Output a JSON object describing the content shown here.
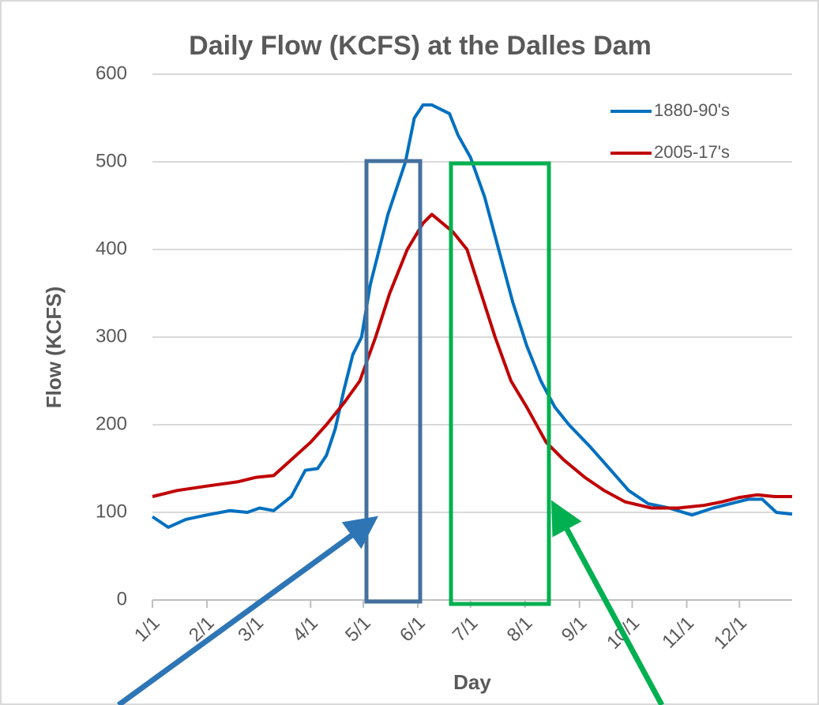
{
  "chart_data": {
    "type": "line",
    "title": "Daily Flow (KCFS) at the Dalles Dam",
    "x_label": "Day",
    "y_label": "Flow (KCFS)",
    "xlim": [
      1,
      365
    ],
    "xticks": [
      {
        "value": 1,
        "label": "1/1"
      },
      {
        "value": 32,
        "label": "2/1"
      },
      {
        "value": 60,
        "label": "3/1"
      },
      {
        "value": 91,
        "label": "4/1"
      },
      {
        "value": 121,
        "label": "5/1"
      },
      {
        "value": 152,
        "label": "6/1"
      },
      {
        "value": 182,
        "label": "7/1"
      },
      {
        "value": 213,
        "label": "8/1"
      },
      {
        "value": 244,
        "label": "9/1"
      },
      {
        "value": 274,
        "label": "10/1"
      },
      {
        "value": 305,
        "label": "11/1"
      },
      {
        "value": 335,
        "label": "12/1"
      }
    ],
    "ylim": [
      0,
      600
    ],
    "yticks": [
      0,
      100,
      200,
      300,
      400,
      500,
      600
    ],
    "grid": true,
    "legend": "upper right",
    "series": [
      {
        "name": "1880-90's",
        "color": "#0070c0",
        "x": [
          1,
          10,
          20,
          32,
          45,
          55,
          62,
          70,
          80,
          88,
          95,
          100,
          105,
          110,
          115,
          120,
          125,
          130,
          135,
          140,
          145,
          150,
          155,
          160,
          165,
          170,
          175,
          182,
          190,
          198,
          206,
          214,
          222,
          230,
          238,
          250,
          261,
          272,
          283,
          295,
          308,
          320,
          330,
          340,
          348,
          356,
          365
        ],
        "values": [
          95,
          83,
          92,
          97,
          102,
          100,
          105,
          102,
          118,
          148,
          150,
          165,
          195,
          240,
          280,
          300,
          360,
          400,
          440,
          470,
          500,
          550,
          565,
          565,
          560,
          555,
          530,
          505,
          460,
          400,
          340,
          290,
          250,
          220,
          200,
          175,
          150,
          125,
          110,
          105,
          97,
          105,
          110,
          115,
          115,
          100,
          98
        ]
      },
      {
        "name": "2005-17's",
        "color": "#c00000",
        "x": [
          1,
          15,
          32,
          50,
          60,
          70,
          80,
          91,
          100,
          110,
          119,
          128,
          136,
          146,
          155,
          160,
          166,
          172,
          180,
          188,
          196,
          205,
          214,
          225,
          235,
          247,
          258,
          270,
          285,
          300,
          315,
          325,
          335,
          345,
          355,
          365
        ],
        "values": [
          118,
          125,
          130,
          135,
          140,
          142,
          160,
          180,
          200,
          225,
          250,
          300,
          350,
          400,
          430,
          440,
          430,
          420,
          400,
          350,
          300,
          250,
          220,
          180,
          160,
          140,
          125,
          112,
          105,
          105,
          108,
          112,
          117,
          120,
          118,
          118
        ]
      }
    ]
  }
}
